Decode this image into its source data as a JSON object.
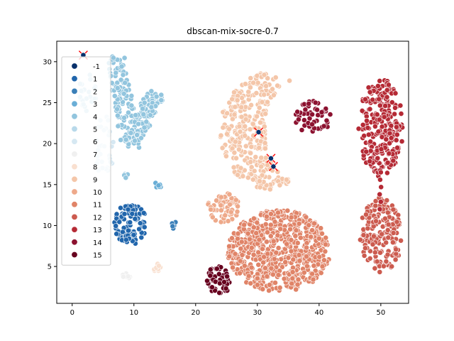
{
  "chart_data": {
    "type": "scatter",
    "title": "dbscan-mix-socre-0.7",
    "xlabel": "",
    "ylabel": "",
    "xlim": [
      -2.5,
      54.5
    ],
    "ylim": [
      0.5,
      32.5
    ],
    "xticks": [
      0,
      10,
      20,
      30,
      40,
      50
    ],
    "yticks": [
      5,
      10,
      15,
      20,
      25,
      30
    ],
    "grid": false,
    "legend": {
      "placement": "left",
      "labels": [
        "-1",
        "1",
        "2",
        "3",
        "4",
        "5",
        "6",
        "7",
        "8",
        "9",
        "10",
        "11",
        "12",
        "13",
        "14",
        "15"
      ]
    },
    "colors": {
      "-1": "#08306b",
      "1": "#2166ac",
      "2": "#3a7fb8",
      "3": "#6aaed6",
      "4": "#92c5de",
      "5": "#b8d9ea",
      "6": "#d6e8f2",
      "7": "#f0f0f0",
      "8": "#f9e0d0",
      "9": "#f4c6a9",
      "10": "#eea98a",
      "11": "#e08468",
      "12": "#cc5b4f",
      "13": "#b52a35",
      "14": "#8c1230",
      "15": "#67001f",
      "outlier_marker": "#ff0000"
    },
    "clusters": [
      {
        "label": "1",
        "shape": "blob",
        "cx": 9.5,
        "cy": 10.2,
        "rx": 2.7,
        "ry": 2.5,
        "n": 95
      },
      {
        "label": "2",
        "shape": "blob",
        "cx": 16.5,
        "cy": 10.1,
        "rx": 0.5,
        "ry": 0.6,
        "n": 8
      },
      {
        "label": "3",
        "shape": "blob",
        "cx": 13.9,
        "cy": 14.9,
        "rx": 0.5,
        "ry": 0.5,
        "n": 6
      },
      {
        "label": "4",
        "shape": "v",
        "arm1": [
          [
            7,
            30.5
          ],
          [
            9.5,
            20
          ]
        ],
        "arm2": [
          [
            13.5,
            26
          ],
          [
            9.5,
            20
          ]
        ],
        "width": 1.4,
        "n": 230
      },
      {
        "label": "4",
        "shape": "blob",
        "cx": 8.8,
        "cy": 16.3,
        "rx": 0.5,
        "ry": 0.5,
        "n": 6
      },
      {
        "label": "5",
        "shape": "blob",
        "cx": 2.5,
        "cy": 26.0,
        "rx": 1.5,
        "ry": 2.5,
        "n": 25
      },
      {
        "label": "6",
        "shape": "blob",
        "cx": 5.2,
        "cy": 19.5,
        "rx": 1.6,
        "ry": 4.0,
        "n": 35
      },
      {
        "label": "7",
        "shape": "blob",
        "cx": 8.7,
        "cy": 3.6,
        "rx": 0.7,
        "ry": 0.6,
        "n": 7
      },
      {
        "label": "8",
        "shape": "blob",
        "cx": 14.0,
        "cy": 4.8,
        "rx": 0.8,
        "ry": 0.6,
        "n": 9
      },
      {
        "label": "9",
        "shape": "crescent",
        "cx": 31.5,
        "cy": 21.5,
        "r": 7.5,
        "inner_cx": 38.0,
        "inner_r": 6.8,
        "n": 300
      },
      {
        "label": "10",
        "shape": "blob",
        "cx": 24.5,
        "cy": 12.2,
        "rx": 2.6,
        "ry": 1.8,
        "n": 55
      },
      {
        "label": "11",
        "shape": "blob",
        "cx": 33.5,
        "cy": 6.9,
        "rx": 8.3,
        "ry": 5.0,
        "n": 650
      },
      {
        "label": "12",
        "shape": "blob",
        "cx": 50.0,
        "cy": 8.8,
        "rx": 3.4,
        "ry": 4.6,
        "n": 170
      },
      {
        "label": "13",
        "shape": "blob",
        "cx": 50.0,
        "cy": 22.0,
        "rx": 3.6,
        "ry": 6.0,
        "n": 250
      },
      {
        "label": "13",
        "shape": "bridge",
        "x": 50.0,
        "y0": 12.0,
        "y1": 16.5,
        "n": 6
      },
      {
        "label": "14",
        "shape": "blob",
        "cx": 39.0,
        "cy": 23.2,
        "rx": 3.0,
        "ry": 2.0,
        "n": 55
      },
      {
        "label": "15",
        "shape": "blob",
        "cx": 23.8,
        "cy": 3.4,
        "rx": 2.0,
        "ry": 1.8,
        "n": 50
      }
    ],
    "outliers": [
      {
        "x": 1.8,
        "y": 30.8
      },
      {
        "x": 30.2,
        "y": 21.4
      },
      {
        "x": 32.2,
        "y": 18.2
      },
      {
        "x": 32.6,
        "y": 17.2
      }
    ]
  }
}
